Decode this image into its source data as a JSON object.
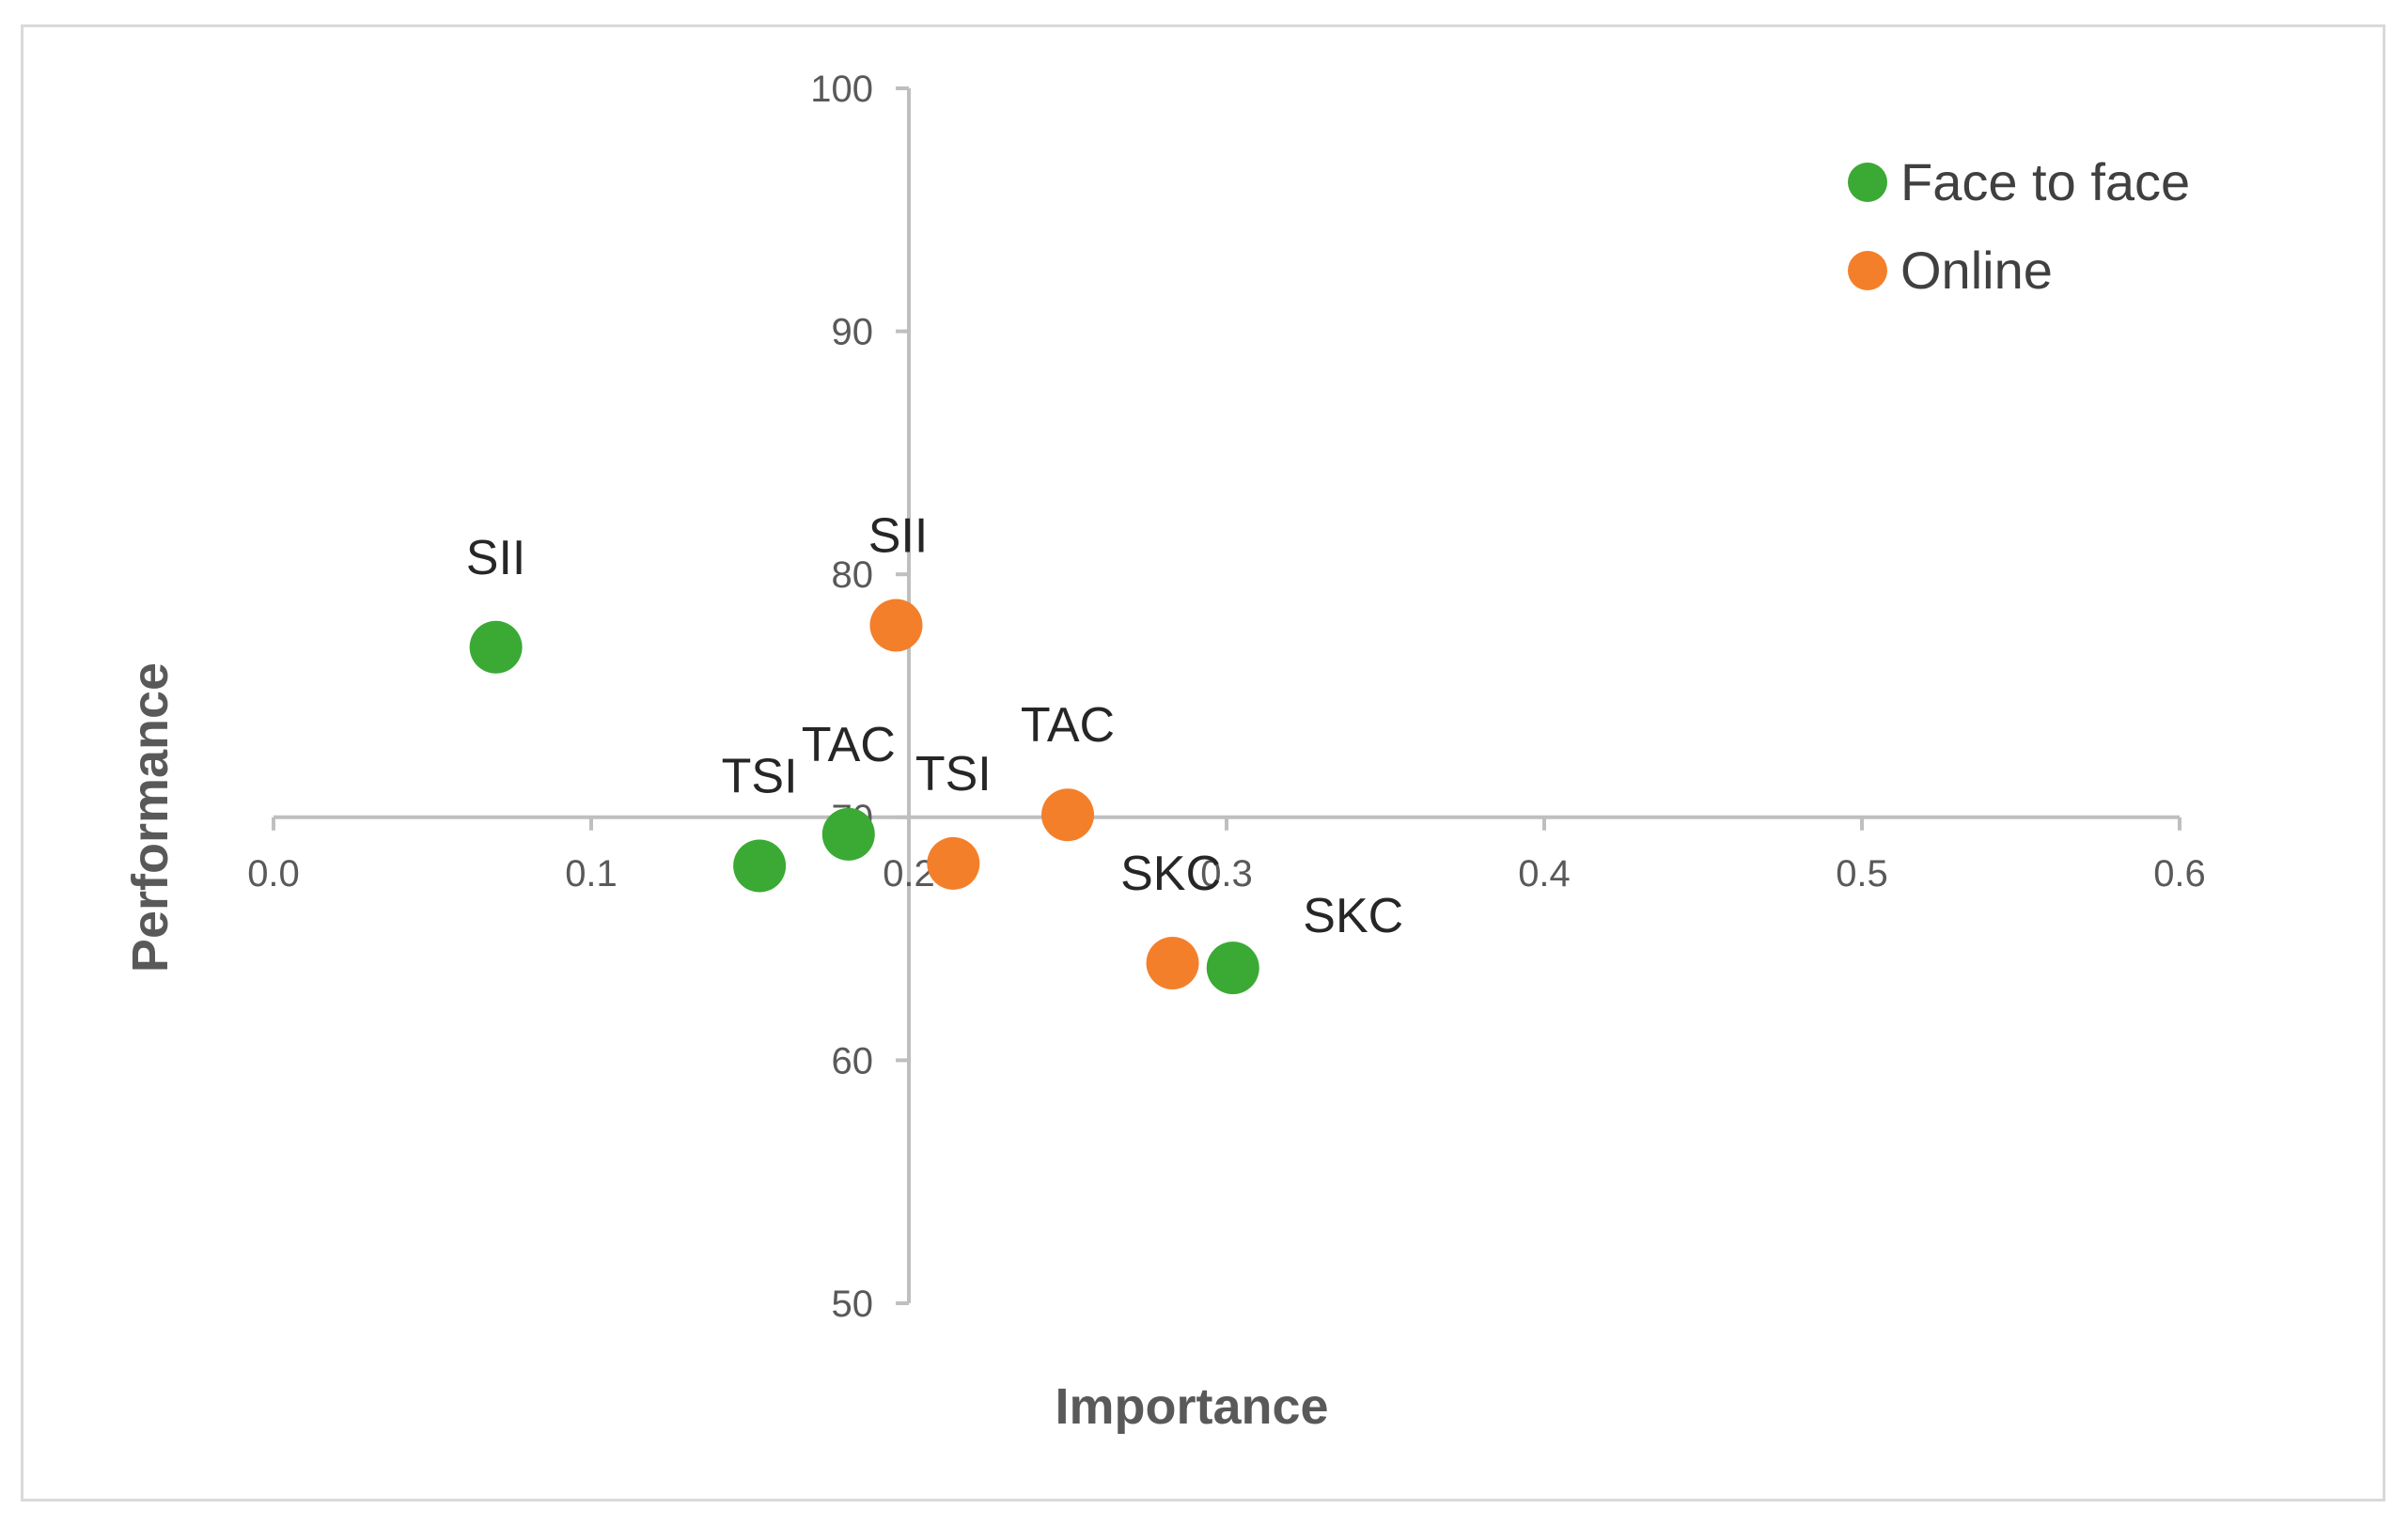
{
  "colors": {
    "face_to_face": "#3aaa35",
    "online": "#f47f2a",
    "axis": "#bfbfbf",
    "frame": "#d9d9d9"
  },
  "chart_data": {
    "type": "scatter",
    "title": "",
    "xlabel": "Importance",
    "ylabel": "Performance",
    "xlim": [
      0.0,
      0.6
    ],
    "ylim": [
      50,
      100
    ],
    "x_ticks": [
      "0.0",
      "0.1",
      "0.2",
      "0.3",
      "0.4",
      "0.5",
      "0.6"
    ],
    "y_ticks": [
      "50",
      "60",
      "70",
      "80",
      "90",
      "100"
    ],
    "x_axis_crosses_y_at": 70,
    "y_axis_crosses_x_at": 0.2,
    "legend_position": "top-right",
    "series": [
      {
        "name": "Face to face",
        "color_key": "face_to_face",
        "points": [
          {
            "label": "SII",
            "x": 0.07,
            "y": 77.0
          },
          {
            "label": "TSI",
            "x": 0.153,
            "y": 68.0
          },
          {
            "label": "TAC",
            "x": 0.181,
            "y": 69.3
          },
          {
            "label": "SKC",
            "x": 0.302,
            "y": 63.8
          }
        ]
      },
      {
        "name": "Online",
        "color_key": "online",
        "points": [
          {
            "label": "SII",
            "x": 0.196,
            "y": 77.9
          },
          {
            "label": "TSI",
            "x": 0.214,
            "y": 68.1
          },
          {
            "label": "TAC",
            "x": 0.25,
            "y": 70.1
          },
          {
            "label": "SKC",
            "x": 0.283,
            "y": 64.0
          }
        ]
      }
    ]
  }
}
